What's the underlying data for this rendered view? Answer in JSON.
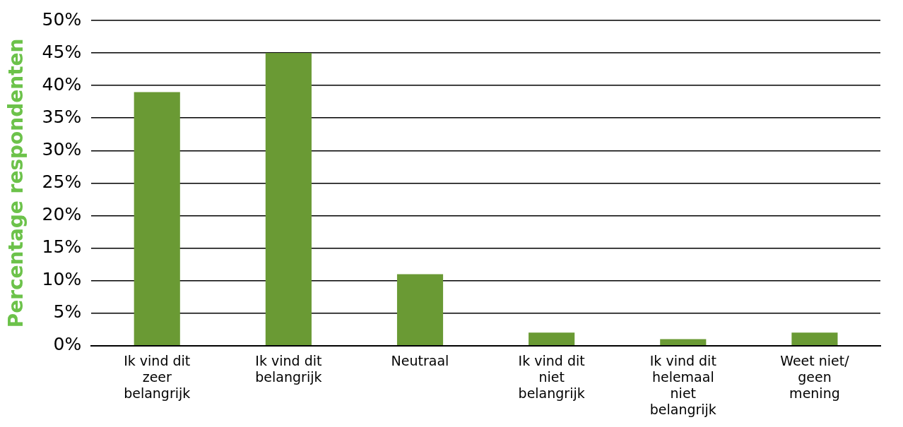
{
  "chart_data": {
    "type": "bar",
    "ylabel": "Percentage respondenten",
    "categories": [
      "Ik vind dit zeer belangrijk",
      "Ik vind dit belangrijk",
      "Neutraal",
      "Ik vind dit niet belangrijk",
      "Ik vind dit helemaal niet belangrijk",
      "Weet niet/ geen mening"
    ],
    "values": [
      39,
      45,
      11,
      2,
      1,
      2
    ],
    "color": "#6a9a34",
    "ylim": [
      0,
      50
    ],
    "yticks": [
      {
        "value": 0,
        "label": "0%"
      },
      {
        "value": 5,
        "label": "5%"
      },
      {
        "value": 10,
        "label": "10%"
      },
      {
        "value": 15,
        "label": "15%"
      },
      {
        "value": 20,
        "label": "20%"
      },
      {
        "value": 25,
        "label": "25%"
      },
      {
        "value": 30,
        "label": "30%"
      },
      {
        "value": 35,
        "label": "35%"
      },
      {
        "value": 40,
        "label": "40%"
      },
      {
        "value": 45,
        "label": "45%"
      },
      {
        "value": 50,
        "label": "50%"
      }
    ],
    "grid": "y",
    "legend": false
  }
}
